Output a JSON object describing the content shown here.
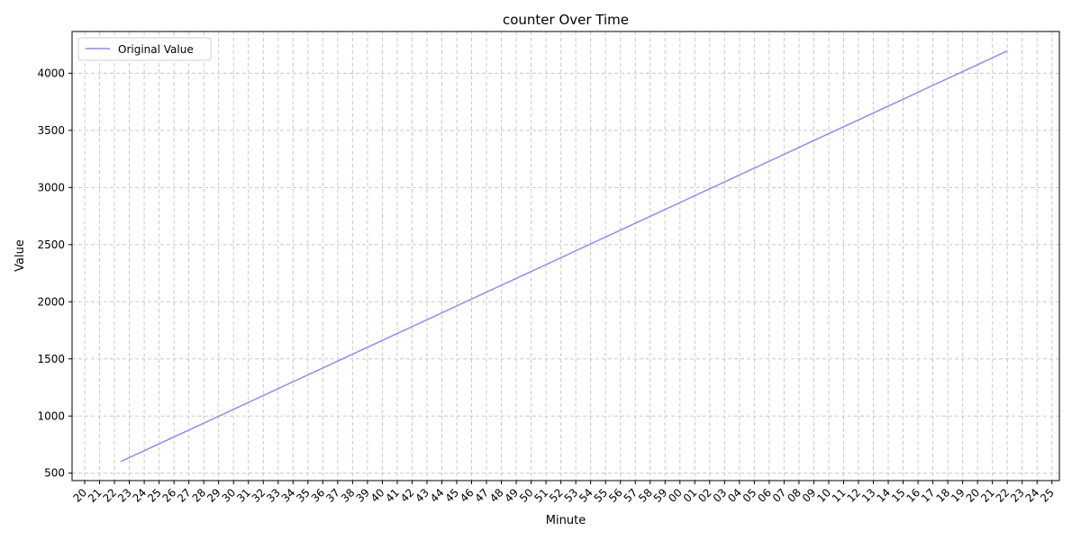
{
  "chart_data": {
    "type": "line",
    "title": "counter Over Time",
    "xlabel": "Minute",
    "ylabel": "Value",
    "grid": true,
    "legend_position": "top-left",
    "x_tick_labels": [
      "20",
      "21",
      "22",
      "23",
      "24",
      "25",
      "26",
      "27",
      "28",
      "29",
      "30",
      "31",
      "32",
      "33",
      "34",
      "35",
      "36",
      "37",
      "38",
      "39",
      "40",
      "41",
      "42",
      "43",
      "44",
      "45",
      "46",
      "47",
      "48",
      "49",
      "50",
      "51",
      "52",
      "53",
      "54",
      "55",
      "56",
      "57",
      "58",
      "59",
      "00",
      "01",
      "02",
      "03",
      "04",
      "05",
      "06",
      "07",
      "08",
      "09",
      "10",
      "11",
      "12",
      "13",
      "14",
      "15",
      "16",
      "17",
      "18",
      "19",
      "20",
      "21",
      "22",
      "23",
      "24",
      "25"
    ],
    "x_range_minutes": [
      -0.85,
      65.5
    ],
    "y_ticks": [
      500,
      1000,
      1500,
      2000,
      2500,
      3000,
      3500,
      4000
    ],
    "ylim": [
      435,
      4365
    ],
    "series": [
      {
        "name": "Original Value",
        "color": "#8c8cf5",
        "x_minutes": [
          2.4,
          62.0
        ],
        "values": [
          600,
          4195
        ]
      }
    ]
  }
}
